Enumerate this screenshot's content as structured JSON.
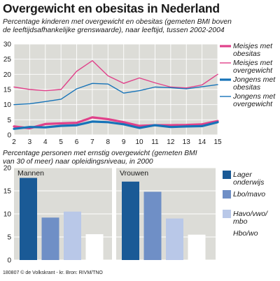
{
  "title": "Overgewicht en obesitas in Nederland",
  "chart_data": [
    {
      "type": "line",
      "subtitle_lines": [
        "Percentage kinderen met overgewicht en obesitas (gemeten BMI boven",
        "de leeftijdsafhankelijke grenswaarde), naar leeftijd, tussen 2002-2004"
      ],
      "x": [
        2,
        3,
        4,
        5,
        6,
        7,
        8,
        9,
        10,
        11,
        12,
        13,
        14,
        15
      ],
      "xticks": [
        2,
        3,
        4,
        5,
        6,
        7,
        8,
        9,
        10,
        11,
        12,
        13,
        14,
        15
      ],
      "yticks": [
        0,
        5,
        10,
        15,
        20,
        25,
        30
      ],
      "xlim": [
        2,
        15
      ],
      "ylim": [
        0,
        30
      ],
      "grid": true,
      "legend_position": "right",
      "series": [
        {
          "name": "Meisjes met obesitas",
          "color": "#e0418a",
          "thick": true,
          "values": [
            2.8,
            2.2,
            3.6,
            3.8,
            4.0,
            5.8,
            5.2,
            4.2,
            3.0,
            3.2,
            3.2,
            3.3,
            3.5,
            4.6
          ]
        },
        {
          "name": "Meisjes met overgewicht",
          "color": "#e0418a",
          "thick": false,
          "values": [
            15.8,
            15.0,
            14.6,
            15.0,
            21.0,
            24.5,
            19.5,
            17.0,
            18.8,
            17.2,
            15.8,
            15.5,
            16.5,
            20.0
          ]
        },
        {
          "name": "Jongens met obesitas",
          "color": "#1673b8",
          "thick": true,
          "values": [
            2.0,
            2.6,
            2.5,
            3.0,
            3.2,
            4.4,
            4.2,
            3.5,
            2.3,
            3.2,
            2.6,
            2.8,
            2.9,
            4.2
          ]
        },
        {
          "name": "Jongens met overgewicht",
          "color": "#1673b8",
          "thick": false,
          "values": [
            10.0,
            10.3,
            11.0,
            11.8,
            15.2,
            17.0,
            16.8,
            13.8,
            14.6,
            15.8,
            15.6,
            15.2,
            15.9,
            16.6
          ]
        }
      ]
    },
    {
      "type": "bar",
      "subtitle_lines": [
        "Percentage personen met ernstig overgewicht (gemeten BMI",
        "van 30 of meer) naar opleidingsniveau, in 2000"
      ],
      "groups": [
        "Mannen",
        "Vrouwen"
      ],
      "yticks": [
        0,
        5,
        10,
        15,
        20
      ],
      "ylim": [
        0,
        20
      ],
      "grid": true,
      "legend_position": "right",
      "series": [
        {
          "name": "Lager onderwijs",
          "color": "#1a5a96",
          "values": [
            17.8,
            17.0
          ]
        },
        {
          "name": "Lbo/mavo",
          "color": "#6f8fc6",
          "values": [
            9.2,
            14.8
          ]
        },
        {
          "name": "Havo/vwo/ mbo",
          "color": "#b9c8e8",
          "values": [
            10.5,
            9.0
          ]
        },
        {
          "name": "Hbo/wo",
          "color": "#ffffff",
          "values": [
            5.6,
            5.5
          ]
        }
      ]
    }
  ],
  "footer": "180807 © de Volkskrant - kr. Bron: RIVM/TNO"
}
